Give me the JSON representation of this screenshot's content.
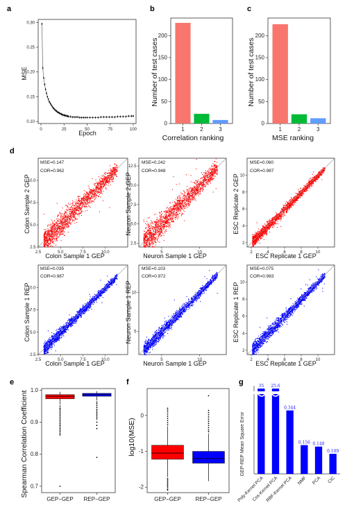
{
  "panel_labels": [
    "a",
    "b",
    "c",
    "d",
    "e",
    "f",
    "g"
  ],
  "chart_data": [
    {
      "panel": "a",
      "type": "line",
      "xlabel": "Epoch",
      "ylabel": "MSE",
      "xlim": [
        0,
        100
      ],
      "ylim": [
        0.1,
        0.3
      ],
      "xticks": [
        "0",
        "25",
        "50",
        "75",
        "100"
      ],
      "yticks": [
        "0.10",
        "0.15",
        "0.20",
        "0.25",
        "0.30"
      ],
      "x": [
        1,
        2,
        3,
        4,
        5,
        6,
        7,
        8,
        9,
        10,
        11,
        12,
        13,
        14,
        15,
        16,
        17,
        18,
        19,
        20,
        21,
        22,
        23,
        24,
        25,
        26,
        27,
        28,
        29,
        30,
        32,
        34,
        36,
        38,
        40,
        42,
        44,
        46,
        48,
        50,
        53,
        56,
        59,
        62,
        65,
        68,
        71,
        74,
        77,
        80,
        83,
        86,
        89,
        92,
        95,
        98,
        100
      ],
      "y": [
        0.297,
        0.208,
        0.188,
        0.175,
        0.165,
        0.157,
        0.15,
        0.145,
        0.14,
        0.137,
        0.134,
        0.131,
        0.128,
        0.126,
        0.124,
        0.122,
        0.121,
        0.119,
        0.118,
        0.117,
        0.116,
        0.115,
        0.114,
        0.113,
        0.113,
        0.112,
        0.112,
        0.111,
        0.111,
        0.11,
        0.11,
        0.109,
        0.109,
        0.109,
        0.109,
        0.108,
        0.108,
        0.108,
        0.108,
        0.108,
        0.108,
        0.108,
        0.108,
        0.108,
        0.109,
        0.109,
        0.109,
        0.109,
        0.109,
        0.109,
        0.11,
        0.11,
        0.11,
        0.11,
        0.111,
        0.111,
        0.111
      ]
    },
    {
      "panel": "b",
      "type": "bar",
      "categories": [
        "1",
        "2",
        "3"
      ],
      "values": [
        229,
        22,
        8
      ],
      "colors": [
        "#f8766d",
        "#00ba38",
        "#619cff"
      ],
      "xlabel": "Correlation ranking",
      "ylabel": "Number of test cases",
      "ylim": [
        0,
        240
      ],
      "yticks": [
        "0",
        "50",
        "100",
        "150",
        "200"
      ]
    },
    {
      "panel": "c",
      "type": "bar",
      "categories": [
        "1",
        "2",
        "3"
      ],
      "values": [
        226,
        21,
        12
      ],
      "colors": [
        "#f8766d",
        "#00ba38",
        "#619cff"
      ],
      "xlabel": "MSE ranking",
      "ylabel": "Number of test cases",
      "ylim": [
        0,
        240
      ],
      "yticks": [
        "0",
        "50",
        "100",
        "150",
        "200"
      ]
    },
    {
      "panel": "d",
      "type": "scatter",
      "plots": [
        {
          "xlabel": "Colon Sample 1 GEP",
          "ylabel": "Colon Sample 2 GEP",
          "mse": "MSE=0.147",
          "cor": "COR=0.962",
          "color": "#ff0000",
          "xlim": [
            2.5,
            12.5
          ],
          "ylim": [
            2.5,
            12.5
          ],
          "xticks": [
            "2.5",
            "5.0",
            "7.5",
            "10.0"
          ],
          "yticks": [
            "2.5",
            "5.0",
            "7.5",
            "10.0"
          ],
          "spread": 0.62
        },
        {
          "xlabel": "Neuron Sample 1 GEP",
          "ylabel": "Neuron Sample 2 GEP",
          "mse": "MSE=0.242",
          "cor": "COR=0.948",
          "color": "#ff0000",
          "xlim": [
            2.0,
            13.5
          ],
          "ylim": [
            2.0,
            13.5
          ],
          "xticks": [
            "5",
            "10"
          ],
          "yticks": [
            "2.5",
            "5.0",
            "7.5",
            "10.0",
            "12.5"
          ],
          "spread": 0.78
        },
        {
          "xlabel": "ESC Replicate 1 GEP",
          "ylabel": "ESC Replicate 2 GEP",
          "mse": "MSE=0.060",
          "cor": "COR=0.987",
          "color": "#ff0000",
          "xlim": [
            1.5,
            12
          ],
          "ylim": [
            1.5,
            12
          ],
          "xticks": [
            "2",
            "4",
            "6",
            "8",
            "10"
          ],
          "yticks": [
            "2",
            "4",
            "6",
            "8",
            "10"
          ],
          "spread": 0.3
        },
        {
          "xlabel": "Colon Sample 1 GEP",
          "ylabel": "Colon Sample 1 REP",
          "mse": "MSE=0.035",
          "cor": "COR=0.987",
          "color": "#0000ff",
          "xlim": [
            2.5,
            12.5
          ],
          "ylim": [
            2.5,
            12.5
          ],
          "xticks": [
            "2.5",
            "5.0",
            "7.5",
            "10.0"
          ],
          "yticks": [
            "2.5",
            "5.0",
            "7.5",
            "10.0"
          ],
          "spread": 0.28
        },
        {
          "xlabel": "Neuron Sample 1 GEP",
          "ylabel": "Neuron Sample 1 REP",
          "mse": "MSE=0.103",
          "cor": "COR=0.972",
          "color": "#0000ff",
          "xlim": [
            2.0,
            13.5
          ],
          "ylim": [
            2.0,
            13.5
          ],
          "xticks": [
            "5",
            "10"
          ],
          "yticks": [
            "5",
            "10"
          ],
          "spread": 0.36
        },
        {
          "xlabel": "ESC Replicate 1 GEP",
          "ylabel": "ESC Replicate 1 REP",
          "mse": "MSE=0.075",
          "cor": "COR=0.983",
          "color": "#0000ff",
          "xlim": [
            1.5,
            12
          ],
          "ylim": [
            1.5,
            12
          ],
          "xticks": [
            "2",
            "4",
            "6",
            "8",
            "10"
          ],
          "yticks": [
            "2",
            "4",
            "6",
            "8",
            "10"
          ],
          "spread": 0.34
        }
      ]
    },
    {
      "panel": "e",
      "type": "box",
      "categories": [
        "GEP−GEP",
        "REP−GEP"
      ],
      "colors": [
        "#ff0000",
        "#0000ff"
      ],
      "ylabel": "Spearman Correlation Coefficient",
      "ylim": [
        0.68,
        1.005
      ],
      "yticks": [
        "0.7",
        "0.8",
        "0.9",
        "1.0"
      ],
      "boxes": [
        {
          "q1": 0.973,
          "median": 0.981,
          "q3": 0.986,
          "whisker_low": 0.955,
          "whisker_high": 0.995,
          "outliers": [
            0.95,
            0.944,
            0.94,
            0.935,
            0.93,
            0.925,
            0.92,
            0.915,
            0.91,
            0.905,
            0.9,
            0.895,
            0.89,
            0.885,
            0.88,
            0.875,
            0.87,
            0.865,
            0.86,
            0.7
          ]
        },
        {
          "q1": 0.981,
          "median": 0.986,
          "q3": 0.99,
          "whisker_low": 0.968,
          "whisker_high": 0.997,
          "outliers": [
            0.963,
            0.958,
            0.952,
            0.946,
            0.94,
            0.935,
            0.93,
            0.925,
            0.92,
            0.915,
            0.91,
            0.9,
            0.89,
            0.88,
            0.79
          ]
        }
      ]
    },
    {
      "panel": "f",
      "type": "box",
      "categories": [
        "GEP−GEP",
        "REP−GEP"
      ],
      "colors": [
        "#ff0000",
        "#0000ff"
      ],
      "ylabel": "log10(MSE)",
      "ylim": [
        -2.15,
        0.75
      ],
      "yticks": [
        "-2",
        "-1",
        "0"
      ],
      "boxes": [
        {
          "q1": -1.22,
          "median": -1.05,
          "q3": -0.83,
          "whisker_low": -1.72,
          "whisker_high": -0.3,
          "outliers": [
            -1.76,
            -1.8,
            -1.84,
            -1.88,
            -1.92,
            -1.96,
            -2.0,
            -2.05,
            -2.08,
            -0.26,
            -0.2,
            -0.14,
            -0.08,
            -0.02,
            0.04,
            0.1,
            0.15,
            0.2
          ]
        },
        {
          "q1": -1.33,
          "median": -1.2,
          "q3": -1.0,
          "whisker_low": -1.83,
          "whisker_high": -0.5,
          "outliers": [
            -0.45,
            -0.4,
            -0.34,
            -0.28,
            -0.22,
            -0.16,
            -0.1,
            -0.04,
            0.02,
            0.08,
            0.14,
            0.55
          ]
        }
      ]
    },
    {
      "panel": "g",
      "type": "bar",
      "categories": [
        "Poly-Kernel PCA",
        "Cos-Kernel PCA",
        "RBF-Kernel PCA",
        "NMF",
        "PCA",
        "CIC"
      ],
      "values": [
        35,
        25.6,
        0.344,
        0.156,
        0.148,
        0.109
      ],
      "value_labels": [
        "35",
        "25.6",
        "0.344",
        "0.156",
        "0.148",
        "0.109"
      ],
      "color": "#0000ff",
      "ylabel": "GEP-REP Mean Square Error",
      "axis_break": true
    }
  ]
}
